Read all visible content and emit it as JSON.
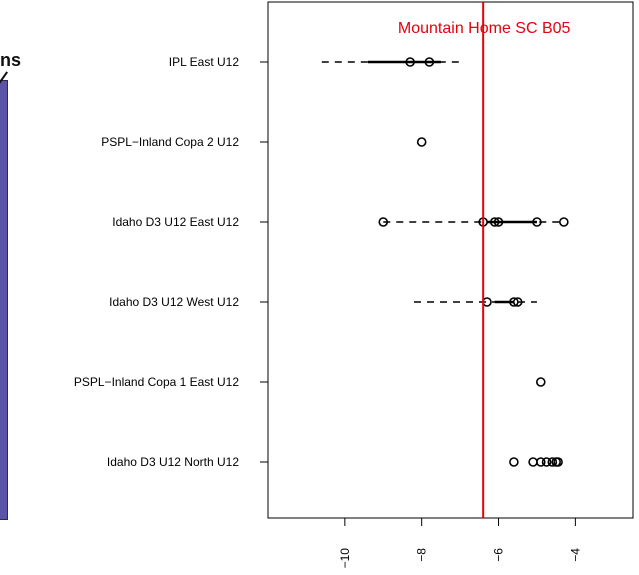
{
  "left_panel": {
    "fragment_text": "ns",
    "panel_color": "#5b54a6"
  },
  "chart_data": {
    "type": "scatter",
    "title": "Mountain Home SC B05",
    "xlabel": "",
    "ylabel": "",
    "x_ticks": [
      -10,
      -8,
      -6,
      -4
    ],
    "x_tick_labels": [
      "−10",
      "−8",
      "−6",
      "−4"
    ],
    "xlim": [
      -12,
      -2.5
    ],
    "grid": false,
    "reference_line": {
      "value": -6.4,
      "label": "Mountain Home SC B05",
      "color": "#e8000b"
    },
    "categories": [
      "IPL East U12",
      "PSPL−Inland Copa 2 U12",
      "Idaho D3 U12 East U12",
      "Idaho D3 U12 West U12",
      "PSPL−Inland Copa 1 East U12",
      "Idaho D3 U12 North U12"
    ],
    "series": [
      {
        "category": "IPL East U12",
        "points": [
          -8.3,
          -7.8
        ],
        "whisker": [
          -10.6,
          -6.9
        ],
        "box": [
          -9.4,
          -7.5
        ]
      },
      {
        "category": "PSPL−Inland Copa 2 U12",
        "points": [
          -8.0
        ],
        "whisker": null,
        "box": null
      },
      {
        "category": "Idaho D3 U12 East U12",
        "points": [
          -9.0,
          -6.4,
          -6.1,
          -6.0,
          -5.0,
          -4.3
        ],
        "whisker": [
          -9.0,
          -4.3
        ],
        "box": [
          -6.3,
          -5.0
        ]
      },
      {
        "category": "Idaho D3 U12 West U12",
        "points": [
          -6.3,
          -5.6,
          -5.5
        ],
        "whisker": [
          -8.2,
          -5.0
        ],
        "box": [
          -6.1,
          -5.6
        ]
      },
      {
        "category": "PSPL−Inland Copa 1 East U12",
        "points": [
          -4.9
        ],
        "whisker": null,
        "box": null
      },
      {
        "category": "Idaho D3 U12 North U12",
        "points": [
          -5.6,
          -5.1,
          -4.9,
          -4.75,
          -4.6,
          -4.5,
          -4.45
        ],
        "whisker": null,
        "box": null
      }
    ],
    "colors": {
      "axis": "#000000",
      "points": "#000000",
      "reference": "#e8000b"
    }
  }
}
